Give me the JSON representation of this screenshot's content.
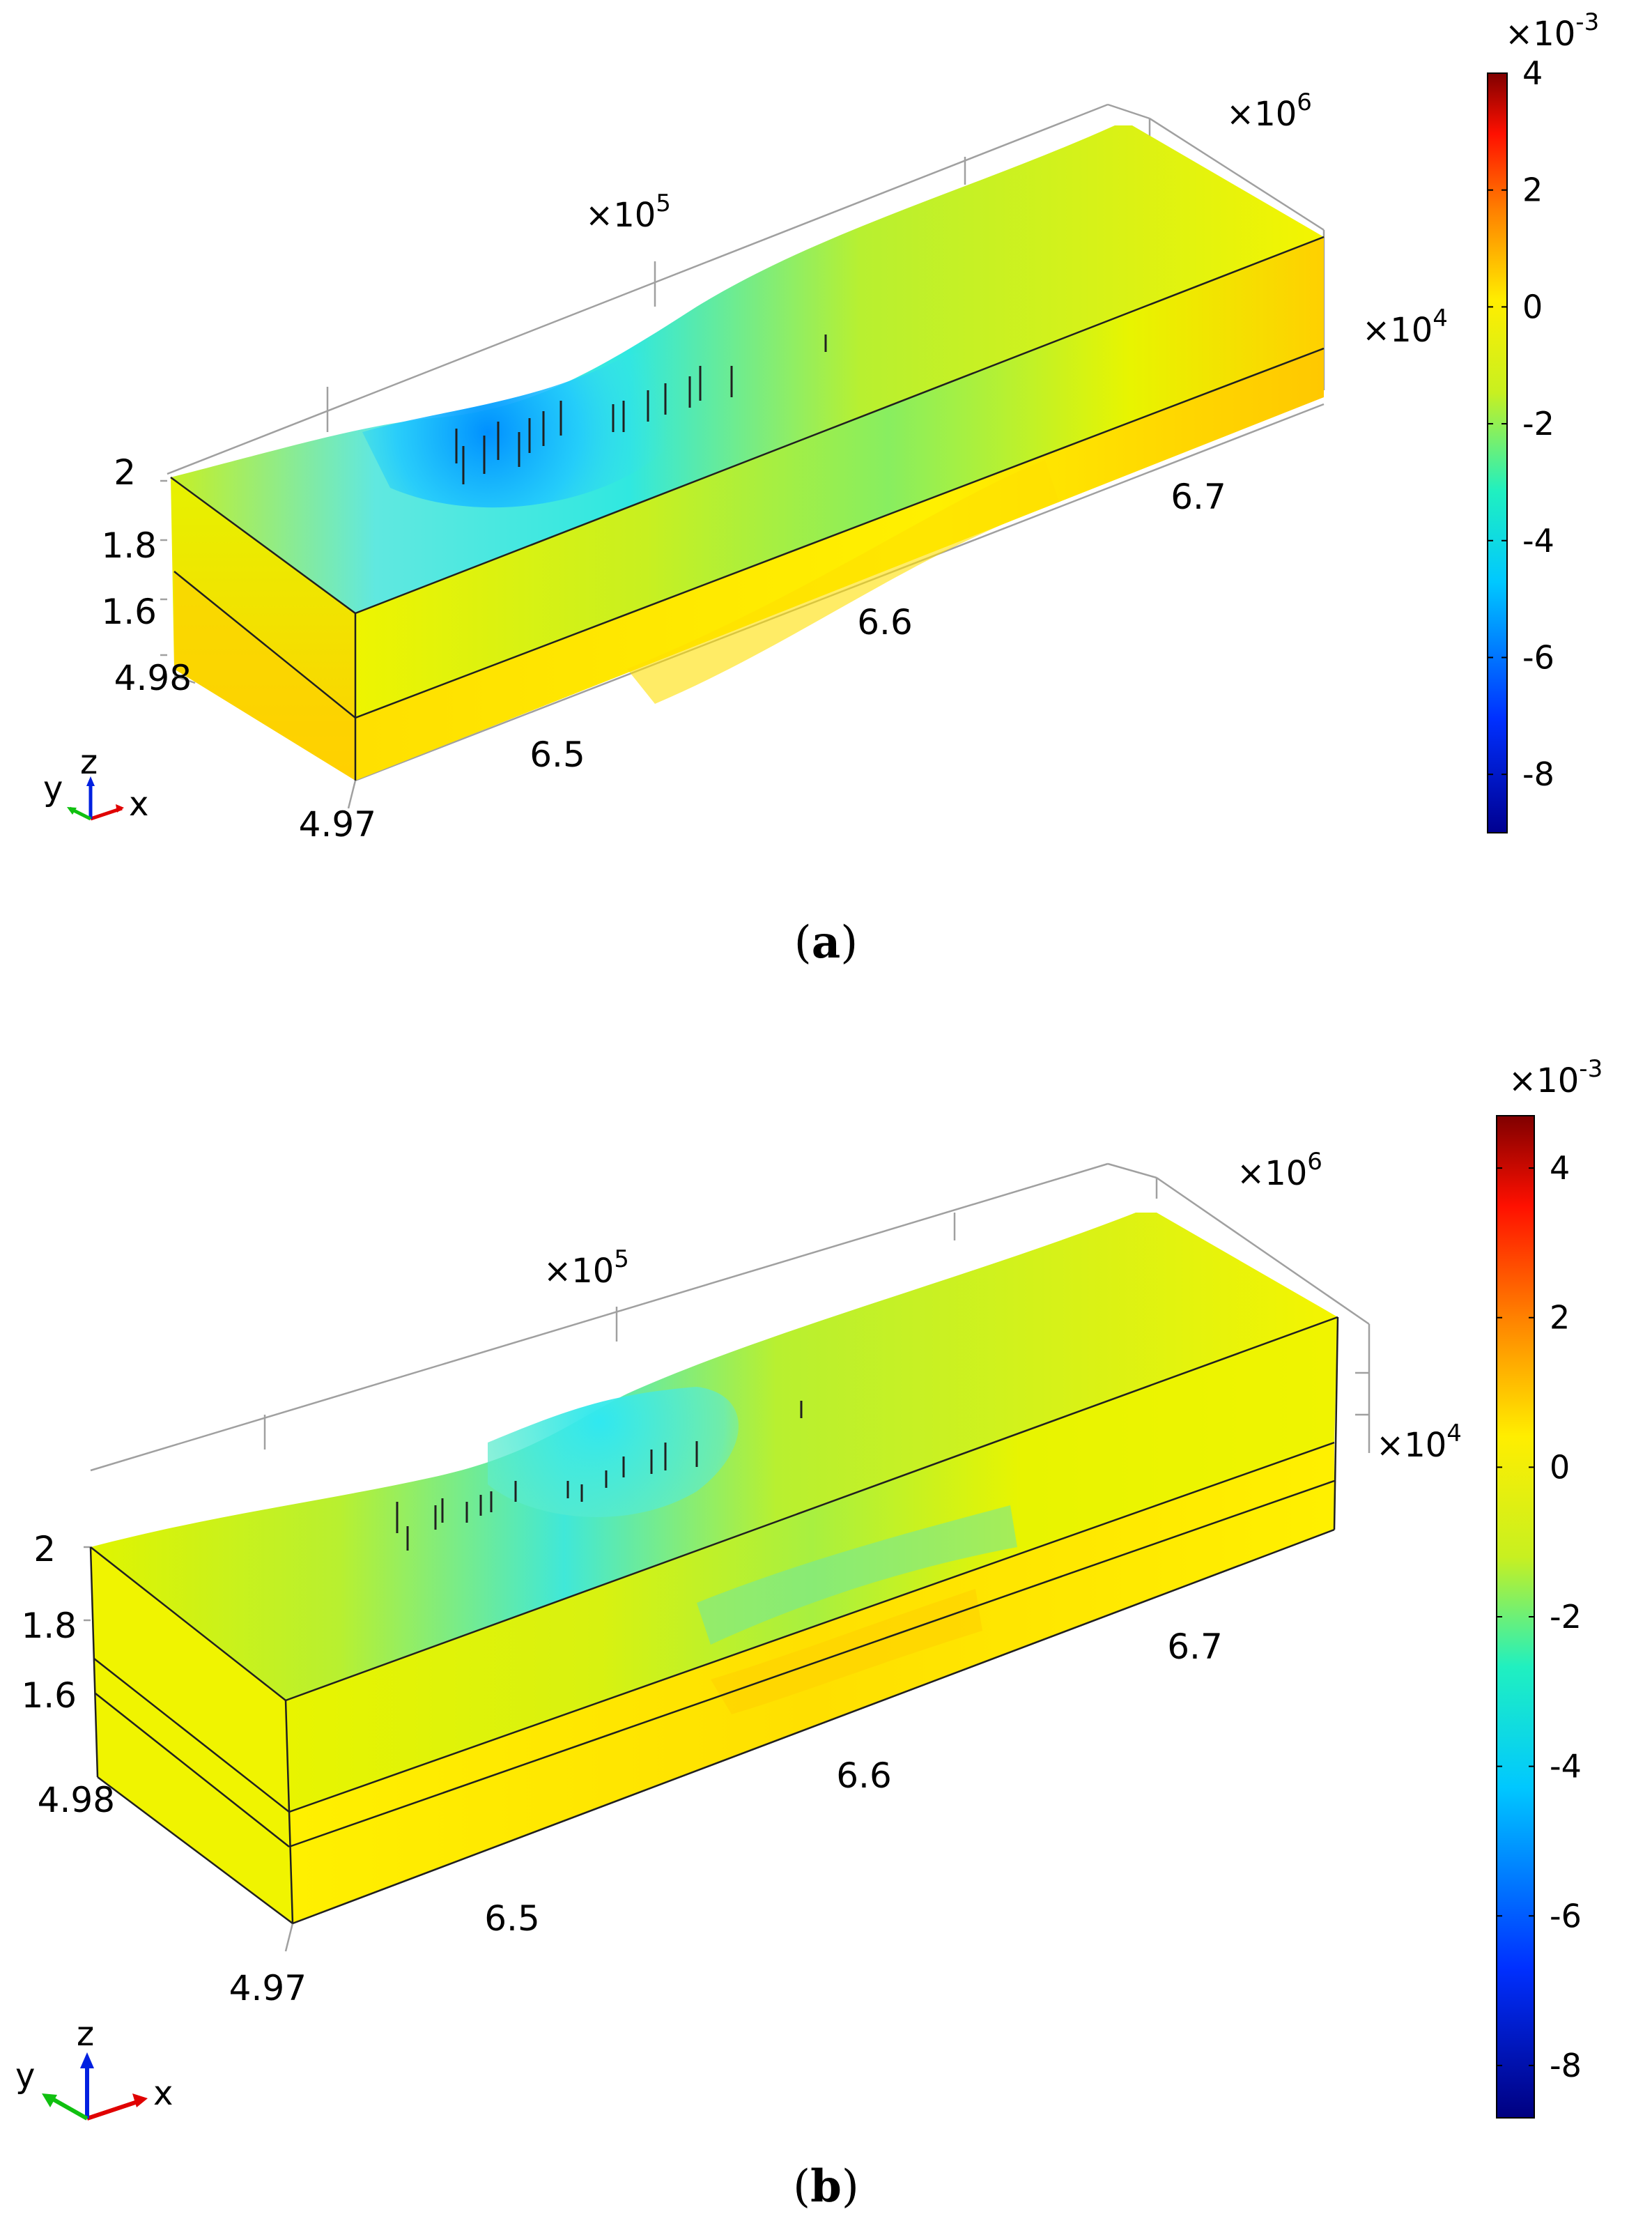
{
  "panels": [
    {
      "id": "a",
      "caption_letter": "a",
      "z_ticks": [
        "2",
        "1.8",
        "1.6"
      ],
      "y_ticks": [
        "4.98",
        "4.97"
      ],
      "x_ticks": [
        "6.5",
        "6.6",
        "6.7"
      ],
      "multiplier_x": {
        "base": "×10",
        "exp": "5"
      },
      "multiplier_y": {
        "base": "×10",
        "exp": "6"
      },
      "multiplier_z": {
        "base": "×10",
        "exp": "4"
      },
      "colorbar": {
        "multiplier": {
          "base": "×10",
          "exp": "-3"
        },
        "ticks": [
          "4",
          "2",
          "0",
          "-2",
          "-4",
          "-6",
          "-8"
        ],
        "range": [
          -9.0,
          4.0
        ],
        "colormap": "rainbow"
      },
      "axis_triad": {
        "x": "x",
        "y": "y",
        "z": "z"
      }
    },
    {
      "id": "b",
      "caption_letter": "b",
      "z_ticks": [
        "2",
        "1.8",
        "1.6"
      ],
      "y_ticks": [
        "4.98",
        "4.97"
      ],
      "x_ticks": [
        "6.5",
        "6.6",
        "6.7"
      ],
      "multiplier_x": {
        "base": "×10",
        "exp": "5"
      },
      "multiplier_y": {
        "base": "×10",
        "exp": "6"
      },
      "multiplier_z": {
        "base": "×10",
        "exp": "4"
      },
      "colorbar": {
        "multiplier": {
          "base": "×10",
          "exp": "-3"
        },
        "ticks": [
          "4",
          "2",
          "0",
          "-2",
          "-4",
          "-6",
          "-8"
        ],
        "range": [
          -8.7,
          4.7
        ],
        "colormap": "rainbow"
      },
      "axis_triad": {
        "x": "x",
        "y": "y",
        "z": "z"
      }
    }
  ],
  "colors": {
    "dark_red": "#800000",
    "red": "#ff1a00",
    "orange": "#ff9a00",
    "yellow": "#fff000",
    "green_yellow": "#b8f030",
    "cyan": "#10f0f0",
    "blue": "#0060ff",
    "dark_blue": "#000090"
  }
}
